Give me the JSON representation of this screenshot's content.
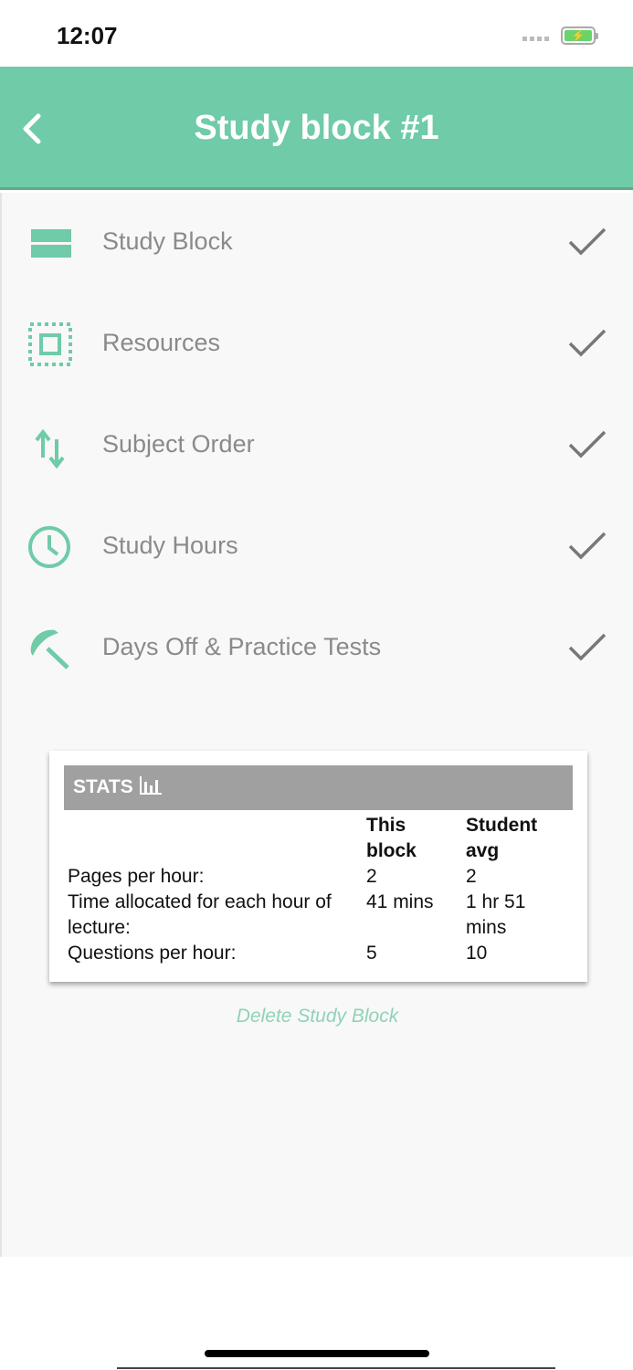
{
  "status_bar": {
    "time": "12:07",
    "battery_icon": "battery-charging-icon"
  },
  "header": {
    "title": "Study block #1",
    "back_icon": "chevron-left-icon"
  },
  "colors": {
    "accent": "#6fcba8",
    "label": "#8a8a8a",
    "check": "#777777",
    "stats_header": "#a0a0a0",
    "delete_link": "#8fd3b8"
  },
  "menu": [
    {
      "label": "Study Block",
      "icon": "block-icon",
      "done": true
    },
    {
      "label": "Resources",
      "icon": "select-frame-icon",
      "done": true
    },
    {
      "label": "Subject Order",
      "icon": "swap-vertical-icon",
      "done": true
    },
    {
      "label": "Study Hours",
      "icon": "clock-icon",
      "done": true
    },
    {
      "label": "Days Off & Practice Tests",
      "icon": "beach-umbrella-icon",
      "done": true
    }
  ],
  "stats": {
    "title": "STATS",
    "icon": "bar-chart-icon",
    "columns": [
      "",
      "This block",
      "Student avg"
    ],
    "rows": [
      [
        "Pages per hour:",
        "2",
        "2"
      ],
      [
        "Time allocated for each hour of lecture:",
        "41 mins",
        "1 hr 51 mins"
      ],
      [
        "Questions per hour:",
        "5",
        "10"
      ]
    ]
  },
  "delete_label": "Delete Study Block"
}
